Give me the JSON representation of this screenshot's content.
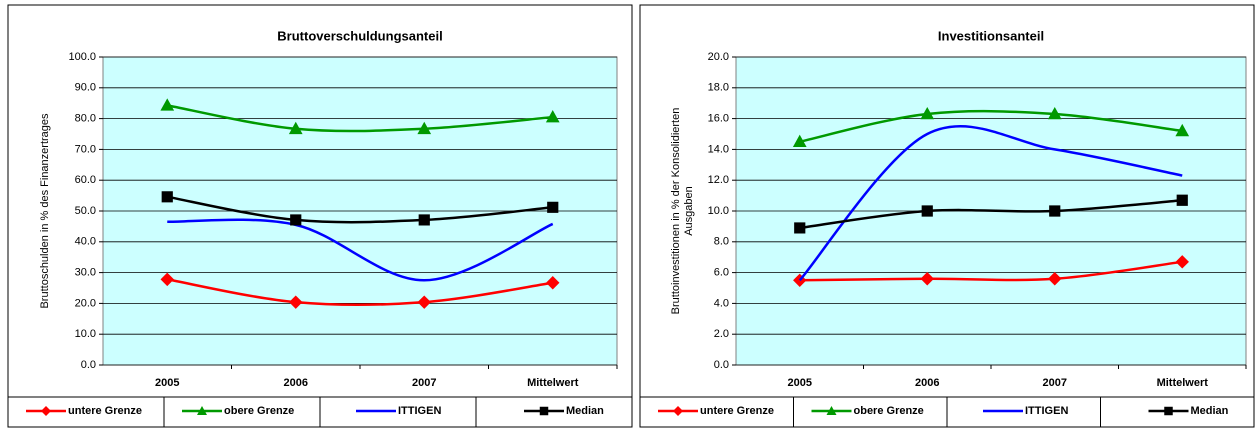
{
  "chart_data": [
    {
      "type": "line",
      "title": "Bruttoverschuldungsanteil",
      "ylabel": [
        "Bruttoschulden in % des Finanzertrages"
      ],
      "categories": [
        "2005",
        "2006",
        "2007",
        "Mittelwert"
      ],
      "ylim": [
        0,
        100
      ],
      "yticks": [
        {
          "value": 0,
          "label": "0.0"
        },
        {
          "value": 10,
          "label": "10.0"
        },
        {
          "value": 20,
          "label": "20.0"
        },
        {
          "value": 30,
          "label": "30.0"
        },
        {
          "value": 40,
          "label": "40.0"
        },
        {
          "value": 50,
          "label": "50.0"
        },
        {
          "value": 60,
          "label": "60.0"
        },
        {
          "value": 70,
          "label": "70.0"
        },
        {
          "value": 80,
          "label": "80.0"
        },
        {
          "value": 90,
          "label": "90.0"
        },
        {
          "value": 100,
          "label": "100.0"
        }
      ],
      "grid": true,
      "background": "#ccffff",
      "series": [
        {
          "name": "untere Grenze",
          "color": "#ff0000",
          "marker": "diamond",
          "values": [
            27.8,
            20.4,
            20.4,
            26.7
          ]
        },
        {
          "name": "obere Grenze",
          "color": "#009900",
          "marker": "triangle",
          "values": [
            84.3,
            76.7,
            76.7,
            80.5
          ]
        },
        {
          "name": "ITTIGEN",
          "color": "#0000ff",
          "marker": "none",
          "values": [
            46.5,
            45.5,
            27.5,
            45.8
          ]
        },
        {
          "name": "Median",
          "color": "#000000",
          "marker": "square",
          "values": [
            54.6,
            47.1,
            47.1,
            51.2
          ]
        }
      ]
    },
    {
      "type": "line",
      "title": "Investitionsanteil",
      "ylabel": [
        "Bruttoinvestitionen in % der Konsolidierten",
        "Ausgaben"
      ],
      "categories": [
        "2005",
        "2006",
        "2007",
        "Mittelwert"
      ],
      "ylim": [
        0,
        20
      ],
      "yticks": [
        {
          "value": 0,
          "label": "0.0"
        },
        {
          "value": 2,
          "label": "2.0"
        },
        {
          "value": 4,
          "label": "4.0"
        },
        {
          "value": 6,
          "label": "6.0"
        },
        {
          "value": 8,
          "label": "8.0"
        },
        {
          "value": 10,
          "label": "10.0"
        },
        {
          "value": 12,
          "label": "12.0"
        },
        {
          "value": 14,
          "label": "14.0"
        },
        {
          "value": 16,
          "label": "16.0"
        },
        {
          "value": 18,
          "label": "18.0"
        },
        {
          "value": 20,
          "label": "20.0"
        }
      ],
      "grid": true,
      "background": "#ccffff",
      "series": [
        {
          "name": "untere Grenze",
          "color": "#ff0000",
          "marker": "diamond",
          "values": [
            5.5,
            5.6,
            5.6,
            6.7
          ]
        },
        {
          "name": "obere Grenze",
          "color": "#009900",
          "marker": "triangle",
          "values": [
            14.5,
            16.3,
            16.3,
            15.2
          ]
        },
        {
          "name": "ITTIGEN",
          "color": "#0000ff",
          "marker": "none",
          "values": [
            5.5,
            15.0,
            14.0,
            12.3
          ]
        },
        {
          "name": "Median",
          "color": "#000000",
          "marker": "square",
          "values": [
            8.9,
            10.0,
            10.0,
            10.7
          ]
        }
      ]
    }
  ]
}
